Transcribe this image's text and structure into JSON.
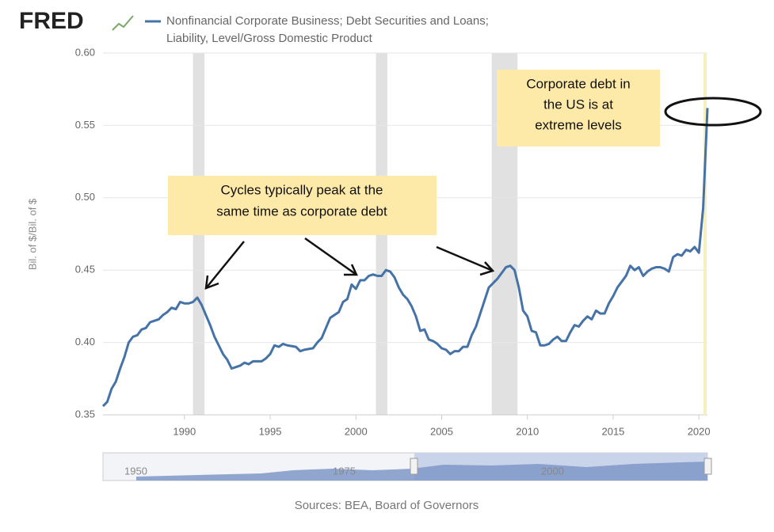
{
  "logo": "FRED",
  "chart_data": {
    "type": "line",
    "title": [
      "Nonfinancial Corporate Business; Debt Securities and Loans;",
      "Liability, Level/Gross Domestic Product"
    ],
    "y_label": "Bil. of $/Bil. of $",
    "xlim": [
      1985.25,
      2020.5
    ],
    "ylim": [
      0.35,
      0.6
    ],
    "xticks": [
      1990,
      1995,
      2000,
      2005,
      2010,
      2015,
      2020
    ],
    "yticks": [
      0.35,
      {
        "value": 0.4,
        "label": "0.40"
      },
      0.45,
      {
        "value": 0.5,
        "label": "0.50"
      },
      0.55,
      {
        "value": 0.6,
        "label": "0.60"
      }
    ],
    "grid": true,
    "recessions": [
      [
        1990.5,
        1991.17
      ],
      [
        2001.17,
        2001.83
      ],
      [
        2007.92,
        2009.42
      ]
    ],
    "x": [
      1985.25,
      1985.5,
      1985.75,
      1986,
      1986.25,
      1986.5,
      1986.75,
      1987,
      1987.25,
      1987.5,
      1987.75,
      1988,
      1988.25,
      1988.5,
      1988.75,
      1989,
      1989.25,
      1989.5,
      1989.75,
      1990,
      1990.25,
      1990.5,
      1990.75,
      1991,
      1991.25,
      1991.5,
      1991.75,
      1992,
      1992.25,
      1992.5,
      1992.75,
      1993,
      1993.25,
      1993.5,
      1993.75,
      1994,
      1994.5,
      1994.75,
      1995,
      1995.25,
      1995.5,
      1995.75,
      1996,
      1996.5,
      1996.75,
      1997,
      1997.5,
      1997.75,
      1998,
      1998.25,
      1998.5,
      1998.75,
      1999,
      1999.25,
      1999.5,
      1999.75,
      2000,
      2000.25,
      2000.5,
      2000.75,
      2001,
      2001.25,
      2001.5,
      2001.75,
      2002,
      2002.25,
      2002.5,
      2002.75,
      2003,
      2003.25,
      2003.5,
      2003.75,
      2004,
      2004.25,
      2004.5,
      2004.75,
      2005,
      2005.25,
      2005.5,
      2005.75,
      2006,
      2006.25,
      2006.5,
      2006.75,
      2007,
      2007.25,
      2007.5,
      2007.75,
      2008,
      2008.25,
      2008.5,
      2008.75,
      2009,
      2009.25,
      2009.5,
      2009.75,
      2010,
      2010.25,
      2010.5,
      2010.75,
      2011,
      2011.25,
      2011.5,
      2011.75,
      2012,
      2012.25,
      2012.5,
      2012.75,
      2013,
      2013.25,
      2013.5,
      2013.75,
      2014,
      2014.25,
      2014.5,
      2014.75,
      2015,
      2015.25,
      2015.5,
      2015.75,
      2016,
      2016.25,
      2016.5,
      2016.75,
      2017,
      2017.25,
      2017.5,
      2017.75,
      2018,
      2018.25,
      2018.5,
      2018.75,
      2019,
      2019.25,
      2019.5,
      2019.75,
      2020,
      2020.25,
      2020.5
    ],
    "series": [
      {
        "color": "#4572a7",
        "values": [
          0.356,
          0.359,
          0.368,
          0.373,
          0.382,
          0.39,
          0.4,
          0.404,
          0.405,
          0.409,
          0.41,
          0.414,
          0.415,
          0.416,
          0.419,
          0.421,
          0.424,
          0.423,
          0.428,
          0.427,
          0.427,
          0.428,
          0.431,
          0.426,
          0.419,
          0.412,
          0.404,
          0.398,
          0.392,
          0.388,
          0.382,
          0.383,
          0.384,
          0.386,
          0.385,
          0.387,
          0.387,
          0.389,
          0.392,
          0.398,
          0.397,
          0.399,
          0.398,
          0.397,
          0.394,
          0.395,
          0.396,
          0.4,
          0.403,
          0.41,
          0.417,
          0.419,
          0.421,
          0.428,
          0.43,
          0.44,
          0.437,
          0.443,
          0.443,
          0.446,
          0.447,
          0.446,
          0.446,
          0.45,
          0.449,
          0.445,
          0.438,
          0.433,
          0.43,
          0.425,
          0.418,
          0.408,
          0.409,
          0.402,
          0.401,
          0.399,
          0.396,
          0.395,
          0.392,
          0.394,
          0.394,
          0.397,
          0.397,
          0.405,
          0.411,
          0.42,
          0.429,
          0.438,
          0.441,
          0.444,
          0.448,
          0.452,
          0.453,
          0.45,
          0.438,
          0.422,
          0.418,
          0.408,
          0.407,
          0.398,
          0.398,
          0.399,
          0.402,
          0.404,
          0.401,
          0.401,
          0.407,
          0.412,
          0.411,
          0.415,
          0.418,
          0.416,
          0.422,
          0.42,
          0.42,
          0.427,
          0.432,
          0.438,
          0.442,
          0.446,
          0.453,
          0.45,
          0.452,
          0.446,
          0.449,
          0.451,
          0.452,
          0.452,
          0.451,
          0.449,
          0.459,
          0.461,
          0.46,
          0.464,
          0.463,
          0.466,
          0.462,
          0.493,
          0.562
        ]
      }
    ],
    "annotations": [
      {
        "lines": [
          "Cycles typically peak at the",
          "same time as corporate debt"
        ]
      },
      {
        "lines": [
          "Corporate debt in",
          "the US is at",
          "extreme levels"
        ]
      }
    ],
    "navigator_labels": [
      "1950",
      "1975",
      "2000"
    ],
    "source": "Sources: BEA, Board of Governors"
  }
}
